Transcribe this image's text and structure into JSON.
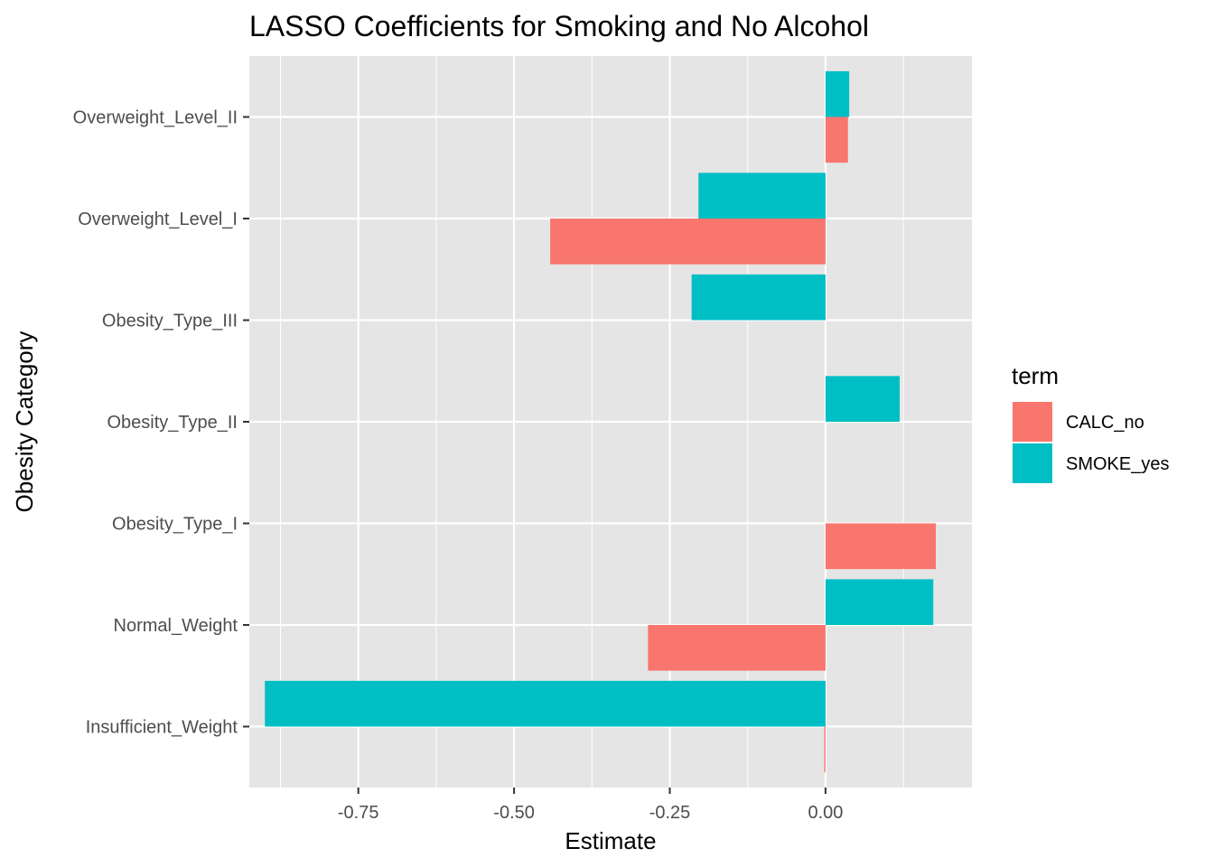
{
  "chart_data": {
    "type": "bar",
    "orientation": "horizontal",
    "title": "LASSO Coefficients for Smoking and No Alcohol",
    "xlabel": "Estimate",
    "ylabel": "Obesity Category",
    "xlim": [
      -0.925,
      0.235
    ],
    "x_ticks": [
      -0.75,
      -0.5,
      -0.25,
      0.0
    ],
    "x_tick_labels": [
      "-0.75",
      "-0.50",
      "-0.25",
      "0.00"
    ],
    "categories": [
      "Insufficient_Weight",
      "Normal_Weight",
      "Obesity_Type_I",
      "Obesity_Type_II",
      "Obesity_Type_III",
      "Overweight_Level_I",
      "Overweight_Level_II"
    ],
    "series": [
      {
        "name": "CALC_no",
        "color": "#F8766D",
        "values": [
          -0.002,
          -0.285,
          0.177,
          0.0,
          0.0,
          -0.442,
          0.036
        ]
      },
      {
        "name": "SMOKE_yes",
        "color": "#00BFC4",
        "values": [
          -0.9,
          0.173,
          0.0,
          0.119,
          -0.215,
          -0.204,
          0.038
        ]
      }
    ],
    "legend": {
      "title": "term",
      "position": "right"
    },
    "grid": true,
    "background": "#EBEBEB",
    "grid_color": "#FFFFFF"
  }
}
